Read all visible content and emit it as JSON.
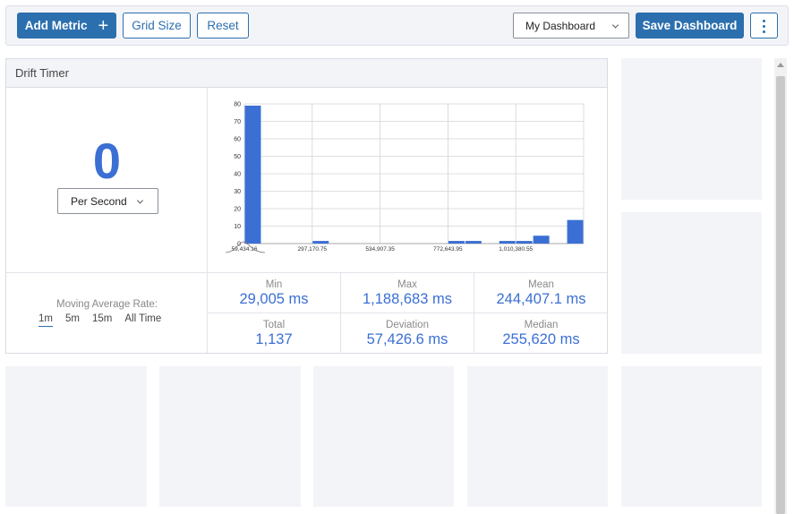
{
  "toolbar": {
    "add_metric_label": "Add Metric",
    "add_metric_icon": "plus-icon",
    "grid_size_label": "Grid Size",
    "reset_label": "Reset",
    "dashboard_select_value": "My Dashboard",
    "save_label": "Save Dashboard",
    "more_icon": "kebab-menu-icon"
  },
  "widget": {
    "title": "Drift Timer",
    "current_rate": "0",
    "rate_unit_select": "Per Second",
    "moving_average_label": "Moving Average Rate:",
    "moving_average_options": [
      "1m",
      "5m",
      "15m",
      "All Time"
    ],
    "moving_average_selected": "1m",
    "stats": [
      {
        "label": "Min",
        "value": "29,005 ms"
      },
      {
        "label": "Max",
        "value": "1,188,683 ms"
      },
      {
        "label": "Mean",
        "value": "244,407.1 ms"
      },
      {
        "label": "Total",
        "value": "1,137"
      },
      {
        "label": "Deviation",
        "value": "57,426.6 ms"
      },
      {
        "label": "Median",
        "value": "255,620 ms"
      }
    ]
  },
  "chart_data": {
    "type": "bar",
    "values": [
      79,
      0,
      0,
      0,
      1.5,
      0,
      0,
      0,
      0,
      0,
      0,
      0,
      1.5,
      1.5,
      0,
      1.5,
      1.5,
      4.5,
      0,
      13.5
    ],
    "x_tick_labels": [
      "59,434.16",
      "297,170.75",
      "534,907.35",
      "772,643.95",
      "1,010,380.55"
    ],
    "y_tick_labels": [
      "0",
      "10",
      "20",
      "30",
      "40",
      "50",
      "60",
      "70",
      "80"
    ],
    "ylim": [
      0,
      80
    ],
    "grid": true,
    "bar_color": "#3b6fd4",
    "inset": "density-curve"
  }
}
